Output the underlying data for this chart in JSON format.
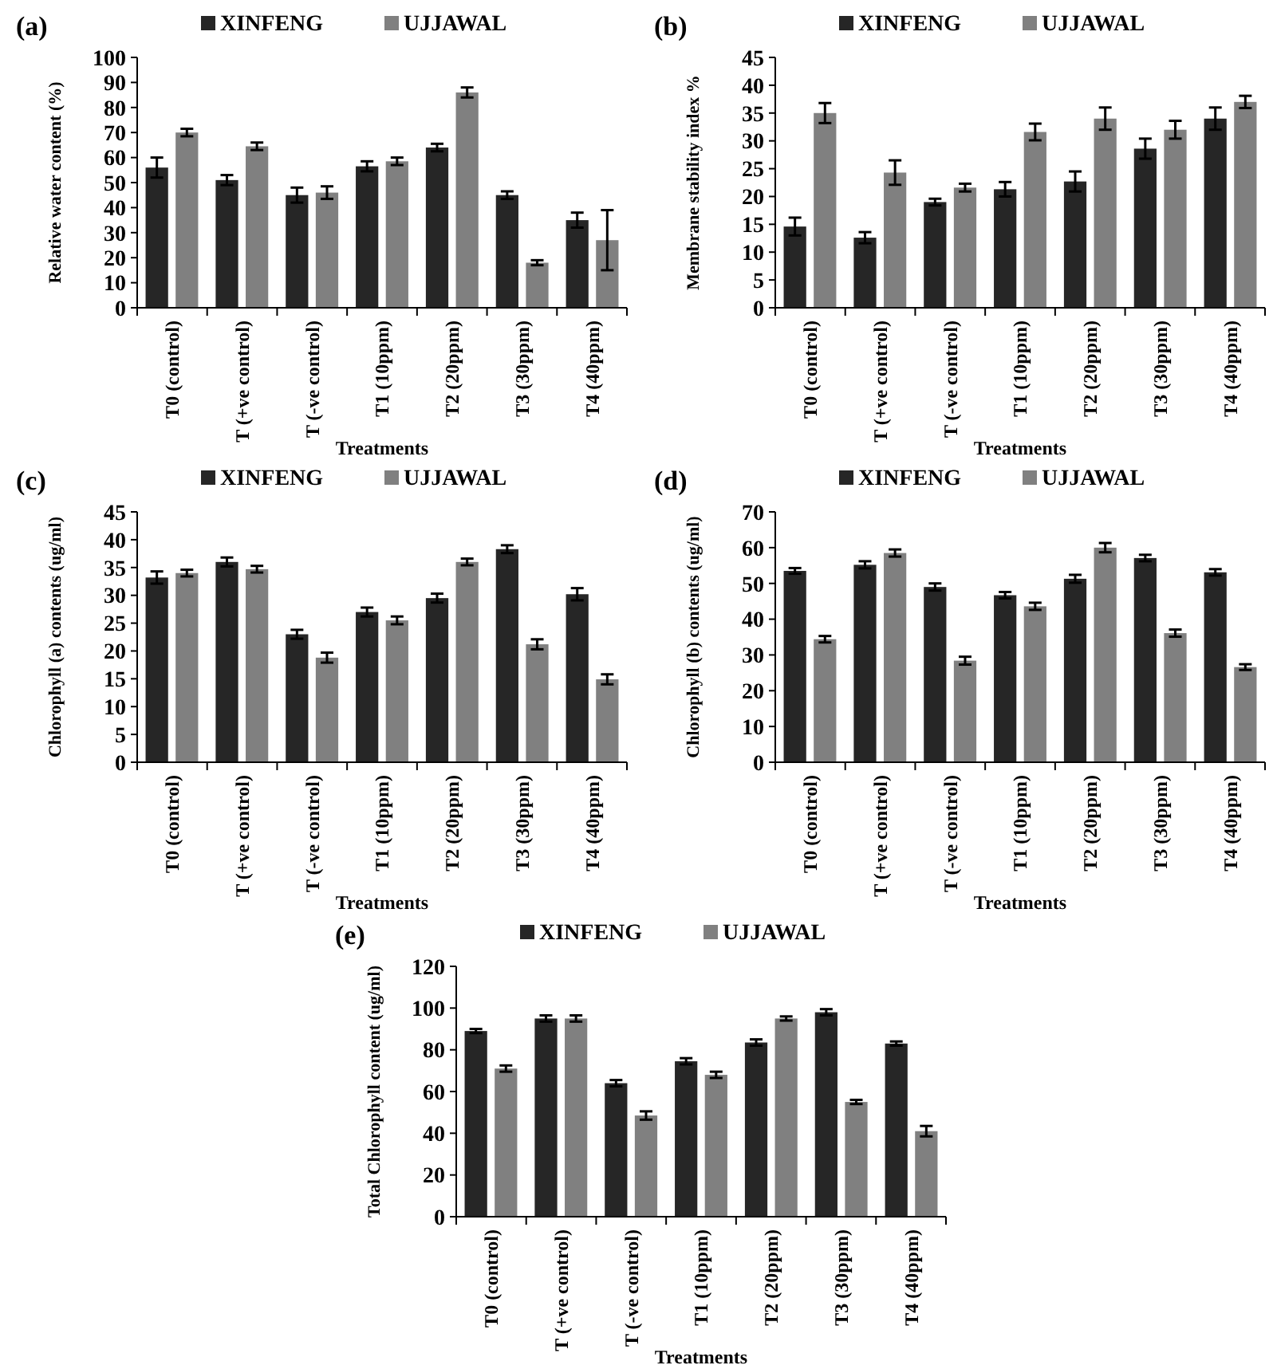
{
  "chart_data": [
    {
      "type": "bar",
      "title": "(a)",
      "xlabel": "Treatments",
      "ylabel": "Relative water content (%)",
      "categories": [
        "T0 (control)",
        "T (+ve control)",
        "T (-ve control)",
        "T1 (10ppm)",
        "T2 (20ppm)",
        "T3 (30ppm)",
        "T4 (40ppm)"
      ],
      "series": [
        {
          "name": "XINFENG",
          "color": "#262626",
          "values": [
            56,
            51,
            45,
            56.5,
            64,
            45,
            35
          ],
          "errors": [
            4,
            2,
            3,
            2,
            1.5,
            1.5,
            3
          ]
        },
        {
          "name": "UJJAWAL",
          "color": "#808080",
          "values": [
            70,
            64.5,
            46,
            58.5,
            86,
            18,
            27
          ],
          "errors": [
            1.5,
            1.5,
            2.5,
            1.5,
            2,
            1,
            12
          ]
        }
      ],
      "ylim": [
        0,
        100
      ],
      "yticks": [
        0,
        10,
        20,
        30,
        40,
        50,
        60,
        70,
        80,
        90,
        100
      ],
      "legend": "top",
      "grid": false
    },
    {
      "type": "bar",
      "title": "(b)",
      "xlabel": "Treatments",
      "ylabel": "Membrane stability index %",
      "categories": [
        "T0 (control)",
        "T (+ve control)",
        "T (-ve control)",
        "T1 (10ppm)",
        "T2 (20ppm)",
        "T3 (30ppm)",
        "T4 (40ppm)"
      ],
      "series": [
        {
          "name": "XINFENG",
          "color": "#262626",
          "values": [
            14.6,
            12.6,
            19,
            21.3,
            22.7,
            28.6,
            34
          ],
          "errors": [
            1.6,
            1,
            0.6,
            1.3,
            1.8,
            1.8,
            2
          ]
        },
        {
          "name": "UJJAWAL",
          "color": "#808080",
          "values": [
            35,
            24.3,
            21.6,
            31.6,
            34,
            32,
            37
          ],
          "errors": [
            1.8,
            2.2,
            0.7,
            1.5,
            2,
            1.6,
            1.1
          ]
        }
      ],
      "ylim": [
        0,
        45
      ],
      "yticks": [
        0,
        5,
        10,
        15,
        20,
        25,
        30,
        35,
        40,
        45
      ],
      "legend": "top",
      "grid": false
    },
    {
      "type": "bar",
      "title": "(c)",
      "xlabel": "Treatments",
      "ylabel": "Chlorophyll (a) contents (ug/ml)",
      "categories": [
        "T0 (control)",
        "T (+ve control)",
        "T (-ve control)",
        "T1 (10ppm)",
        "T2 (20ppm)",
        "T3 (30ppm)",
        "T4 (40ppm)"
      ],
      "series": [
        {
          "name": "XINFENG",
          "color": "#262626",
          "values": [
            33.2,
            36,
            23,
            27,
            29.5,
            38.3,
            30.2
          ],
          "errors": [
            1.1,
            0.8,
            0.8,
            0.8,
            0.8,
            0.7,
            1.1
          ]
        },
        {
          "name": "UJJAWAL",
          "color": "#808080",
          "values": [
            34,
            34.7,
            18.8,
            25.5,
            36,
            21.2,
            14.9
          ],
          "errors": [
            0.6,
            0.6,
            0.9,
            0.7,
            0.6,
            0.9,
            0.9
          ]
        }
      ],
      "ylim": [
        0,
        45
      ],
      "yticks": [
        0,
        5,
        10,
        15,
        20,
        25,
        30,
        35,
        40,
        45
      ],
      "legend": "top",
      "grid": false
    },
    {
      "type": "bar",
      "title": "(d)",
      "xlabel": "Treatments",
      "ylabel": "Chlorophyll (b) contents (ug/ml)",
      "categories": [
        "T0 (control)",
        "T (+ve control)",
        "T (-ve control)",
        "T1 (10ppm)",
        "T2 (20ppm)",
        "T3 (30ppm)",
        "T4 (40ppm)"
      ],
      "series": [
        {
          "name": "XINFENG",
          "color": "#262626",
          "values": [
            53.5,
            55.2,
            49,
            46.7,
            51.3,
            57.1,
            53.1
          ],
          "errors": [
            0.8,
            1,
            1,
            0.9,
            1.1,
            0.9,
            0.9
          ]
        },
        {
          "name": "UJJAWAL",
          "color": "#808080",
          "values": [
            34.4,
            58.5,
            28.4,
            43.6,
            60,
            36.1,
            26.6
          ],
          "errors": [
            0.9,
            1,
            1.1,
            1,
            1.3,
            1,
            0.8
          ]
        }
      ],
      "ylim": [
        0,
        70
      ],
      "yticks": [
        0,
        10,
        20,
        30,
        40,
        50,
        60,
        70
      ],
      "legend": "top",
      "grid": false
    },
    {
      "type": "bar",
      "title": "(e)",
      "xlabel": "Treatments",
      "ylabel": "Total Chlorophyll content (ug/ml)",
      "categories": [
        "T0 (control)",
        "T (+ve control)",
        "T (-ve control)",
        "T1 (10ppm)",
        "T2 (20ppm)",
        "T3 (30ppm)",
        "T4 (40ppm)"
      ],
      "series": [
        {
          "name": "XINFENG",
          "color": "#262626",
          "values": [
            89,
            95,
            64,
            74.5,
            83.5,
            98,
            83
          ],
          "errors": [
            1,
            1.5,
            1.5,
            1.5,
            1.5,
            1.5,
            1
          ]
        },
        {
          "name": "UJJAWAL",
          "color": "#808080",
          "values": [
            71,
            95,
            48.5,
            68,
            95,
            55,
            41
          ],
          "errors": [
            1.5,
            1.5,
            2,
            1.5,
            1,
            1,
            2.5
          ]
        }
      ],
      "ylim": [
        0,
        120
      ],
      "yticks": [
        0,
        20,
        40,
        60,
        80,
        100,
        120
      ],
      "legend": "top",
      "grid": false
    }
  ]
}
